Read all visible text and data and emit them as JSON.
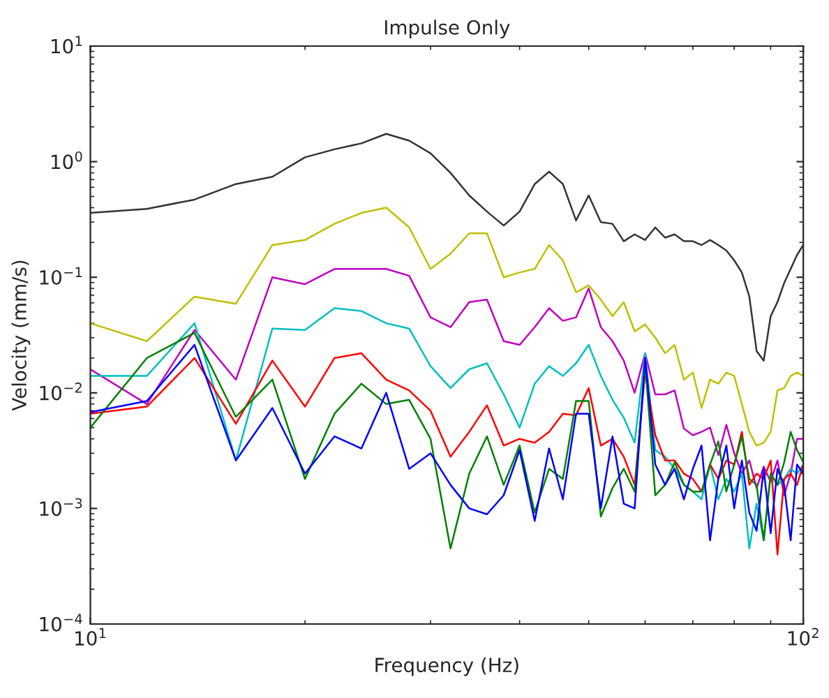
{
  "chart_data": {
    "type": "line",
    "title": "Impulse Only",
    "xlabel": "Frequency (Hz)",
    "ylabel": "Velocity (mm/s)",
    "log": "xy",
    "grid": false,
    "legend": false,
    "x": [
      10,
      12,
      14,
      16,
      18,
      20,
      22,
      24,
      26,
      28,
      30,
      32,
      34,
      36,
      38,
      40,
      42,
      44,
      46,
      48,
      50,
      52,
      54,
      56,
      58,
      60,
      62,
      64,
      66,
      68,
      70,
      72,
      74,
      76,
      78,
      80,
      82,
      84,
      86,
      88,
      90,
      92,
      94,
      96,
      98,
      100
    ],
    "xlim": [
      10,
      100
    ],
    "ylim": [
      0.0001,
      10
    ],
    "xticks": [
      {
        "value": 10,
        "label": "10$^{1}$"
      },
      {
        "value": 100,
        "label": "10$^{2}$"
      }
    ],
    "yticks": [
      {
        "value": 0.0001,
        "label": "10$^{−4}$"
      },
      {
        "value": 0.001,
        "label": "10$^{−3}$"
      },
      {
        "value": 0.01,
        "label": "10$^{−2}$"
      },
      {
        "value": 0.1,
        "label": "10$^{−1}$"
      },
      {
        "value": 1,
        "label": "10$^{0}$"
      },
      {
        "value": 10,
        "label": "10$^{1}$"
      }
    ],
    "series": [
      {
        "color": "#333333",
        "values": [
          0.36,
          0.39,
          0.47,
          0.64,
          0.74,
          1.09,
          1.28,
          1.44,
          1.74,
          1.52,
          1.18,
          0.8,
          0.51,
          0.37,
          0.28,
          0.37,
          0.64,
          0.82,
          0.64,
          0.31,
          0.51,
          0.3,
          0.29,
          0.205,
          0.235,
          0.21,
          0.27,
          0.22,
          0.235,
          0.205,
          0.205,
          0.19,
          0.21,
          0.19,
          0.17,
          0.14,
          0.11,
          0.068,
          0.023,
          0.019,
          0.046,
          0.061,
          0.089,
          0.118,
          0.156,
          0.19
        ]
      },
      {
        "color": "#bfbf00",
        "values": [
          0.04,
          0.028,
          0.068,
          0.059,
          0.19,
          0.21,
          0.29,
          0.36,
          0.4,
          0.27,
          0.118,
          0.16,
          0.24,
          0.24,
          0.1,
          0.11,
          0.118,
          0.19,
          0.14,
          0.074,
          0.085,
          0.064,
          0.046,
          0.061,
          0.034,
          0.039,
          0.03,
          0.022,
          0.026,
          0.013,
          0.015,
          0.0074,
          0.013,
          0.012,
          0.015,
          0.014,
          0.008,
          0.0046,
          0.0035,
          0.0037,
          0.0046,
          0.0105,
          0.011,
          0.014,
          0.015,
          0.014
        ]
      },
      {
        "color": "#bf00bf",
        "values": [
          0.016,
          0.008,
          0.035,
          0.013,
          0.1,
          0.087,
          0.118,
          0.118,
          0.118,
          0.103,
          0.045,
          0.037,
          0.061,
          0.064,
          0.028,
          0.026,
          0.037,
          0.054,
          0.042,
          0.045,
          0.08,
          0.037,
          0.028,
          0.019,
          0.01,
          0.022,
          0.0097,
          0.0097,
          0.0105,
          0.0049,
          0.0043,
          0.0046,
          0.005,
          0.0029,
          0.0053,
          0.003,
          0.002,
          0.0026,
          0.0015,
          0.0023,
          0.0017,
          0.0026,
          0.0013,
          0.002,
          0.004,
          0.004
        ]
      },
      {
        "color": "#00bfbf",
        "values": [
          0.014,
          0.014,
          0.04,
          0.0026,
          0.036,
          0.035,
          0.054,
          0.051,
          0.04,
          0.036,
          0.017,
          0.011,
          0.016,
          0.018,
          0.0097,
          0.005,
          0.012,
          0.017,
          0.014,
          0.018,
          0.026,
          0.014,
          0.0087,
          0.0061,
          0.0037,
          0.022,
          0.0032,
          0.0028,
          0.0022,
          0.0016,
          0.0014,
          0.0012,
          0.0024,
          0.0012,
          0.0018,
          0.0014,
          0.002,
          0.00045,
          0.0011,
          0.00053,
          0.002,
          0.0016,
          0.0018,
          0.0022,
          0.002,
          0.0024
        ]
      },
      {
        "color": "#ff0000",
        "values": [
          0.0066,
          0.0076,
          0.02,
          0.0054,
          0.019,
          0.0076,
          0.02,
          0.022,
          0.013,
          0.0105,
          0.007,
          0.0028,
          0.0046,
          0.0078,
          0.0035,
          0.004,
          0.0037,
          0.0046,
          0.0066,
          0.0064,
          0.011,
          0.0035,
          0.004,
          0.0028,
          0.0016,
          0.015,
          0.0043,
          0.0026,
          0.0026,
          0.002,
          0.0018,
          0.0014,
          0.0024,
          0.0018,
          0.0026,
          0.0024,
          0.0046,
          0.0016,
          0.002,
          0.0018,
          0.0026,
          0.0004,
          0.0018,
          0.002,
          0.0016,
          0.0024
        ]
      },
      {
        "color": "#008000",
        "values": [
          0.005,
          0.02,
          0.033,
          0.0062,
          0.013,
          0.0018,
          0.0066,
          0.012,
          0.008,
          0.0087,
          0.004,
          0.00045,
          0.002,
          0.0042,
          0.0016,
          0.0035,
          0.00092,
          0.0022,
          0.0018,
          0.0085,
          0.0085,
          0.00085,
          0.0015,
          0.0022,
          0.0014,
          0.018,
          0.0013,
          0.0016,
          0.0025,
          0.0016,
          0.0014,
          0.0014,
          0.0024,
          0.0038,
          0.0014,
          0.0024,
          0.0042,
          0.0018,
          0.0016,
          0.00053,
          0.002,
          0.0016,
          0.0025,
          0.0046,
          0.0032,
          0.0025
        ]
      },
      {
        "color": "#0000ff",
        "values": [
          0.0068,
          0.0085,
          0.026,
          0.0026,
          0.0074,
          0.002,
          0.0042,
          0.0033,
          0.01,
          0.0022,
          0.003,
          0.0016,
          0.001,
          0.00089,
          0.0013,
          0.0032,
          0.00078,
          0.0033,
          0.0012,
          0.0066,
          0.0066,
          0.001,
          0.0042,
          0.0011,
          0.001,
          0.02,
          0.0024,
          0.0016,
          0.0022,
          0.0012,
          0.0022,
          0.0035,
          0.00053,
          0.0018,
          0.0035,
          0.001,
          0.0026,
          0.00092,
          0.00064,
          0.0022,
          0.00061,
          0.0022,
          0.0016,
          0.00053,
          0.0024,
          0.002
        ]
      }
    ]
  }
}
